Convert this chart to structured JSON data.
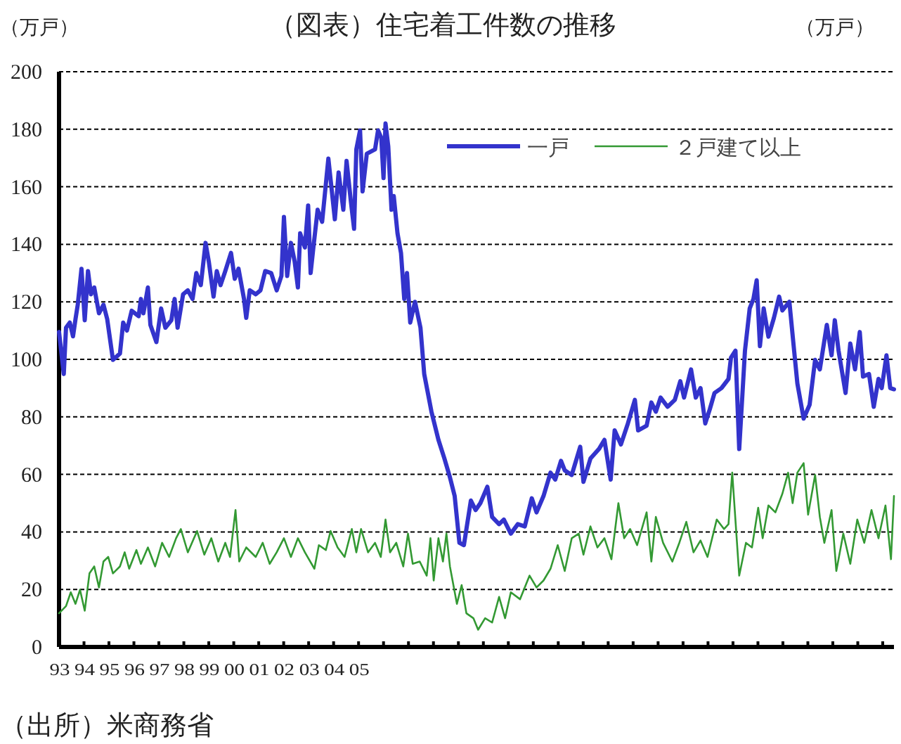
{
  "chart_data": {
    "type": "line",
    "title": "（図表）住宅着工件数の推移",
    "ylabel": "（万戸）",
    "annotations": [
      "（万戸）",
      "（出所）米商務省"
    ],
    "xlim": [
      1993,
      2026.45
    ],
    "ylim": [
      0,
      200
    ],
    "yticks": [
      0,
      20,
      40,
      60,
      80,
      100,
      120,
      140,
      160,
      180,
      200
    ],
    "xticks": [
      {
        "value": 1993,
        "label": "93"
      },
      {
        "value": 1994,
        "label": "94"
      },
      {
        "value": 1995,
        "label": "95"
      },
      {
        "value": 1996,
        "label": "96"
      },
      {
        "value": 1997,
        "label": "97"
      },
      {
        "value": 1998,
        "label": "98"
      },
      {
        "value": 1999,
        "label": "99"
      },
      {
        "value": 2000,
        "label": "00"
      },
      {
        "value": 2001,
        "label": "01"
      },
      {
        "value": 2002,
        "label": "02"
      },
      {
        "value": 2003,
        "label": "03"
      },
      {
        "value": 2004,
        "label": "04"
      },
      {
        "value": 2005,
        "label": "05"
      },
      {
        "value": 2006,
        "label": null
      },
      {
        "value": 2007,
        "label": null
      },
      {
        "value": 2008,
        "label": null
      },
      {
        "value": 2009,
        "label": null
      },
      {
        "value": 2010,
        "label": null
      },
      {
        "value": 2011,
        "label": null
      },
      {
        "value": 2012,
        "label": null
      },
      {
        "value": 2013,
        "label": null
      },
      {
        "value": 2014,
        "label": null
      },
      {
        "value": 2015,
        "label": null
      },
      {
        "value": 2016,
        "label": null
      },
      {
        "value": 2017,
        "label": null
      },
      {
        "value": 2018,
        "label": null
      },
      {
        "value": 2019,
        "label": null
      },
      {
        "value": 2020,
        "label": null
      },
      {
        "value": 2021,
        "label": null
      },
      {
        "value": 2022,
        "label": null
      },
      {
        "value": 2023,
        "label": null
      },
      {
        "value": 2024,
        "label": null
      },
      {
        "value": 2025,
        "label": null
      },
      {
        "value": 2026,
        "label": null
      }
    ],
    "grid": "y",
    "legend": "top right",
    "marker": "none",
    "series": [
      {
        "name": "一戸",
        "color": "#3333cc",
        "line_style": "solid",
        "x": [
          1993.0,
          1993.19,
          1993.28,
          1993.43,
          1993.56,
          1993.66,
          1993.75,
          1993.9,
          1994.03,
          1994.16,
          1994.28,
          1994.41,
          1994.6,
          1994.78,
          1994.93,
          1995.16,
          1995.44,
          1995.57,
          1995.72,
          1995.91,
          1996.19,
          1996.28,
          1996.38,
          1996.56,
          1996.66,
          1996.9,
          1997.09,
          1997.26,
          1997.5,
          1997.63,
          1997.75,
          1997.97,
          1998.16,
          1998.35,
          1998.5,
          1998.68,
          1998.87,
          1999.0,
          1999.19,
          1999.32,
          1999.47,
          1999.66,
          1999.89,
          2000.04,
          2000.19,
          2000.41,
          2000.5,
          2000.64,
          2000.88,
          2001.07,
          2001.26,
          2001.5,
          2001.72,
          2001.91,
          2002.01,
          2002.14,
          2002.29,
          2002.44,
          2002.57,
          2002.66,
          2002.85,
          2002.98,
          2003.08,
          2003.19,
          2003.36,
          2003.54,
          2003.79,
          2004.05,
          2004.2,
          2004.39,
          2004.52,
          2004.69,
          2004.82,
          2004.91,
          2005.06,
          2005.16,
          2005.33,
          2005.66,
          2005.78,
          2005.91,
          2006.0,
          2006.08,
          2006.19,
          2006.32,
          2006.41,
          2006.56,
          2006.7,
          2006.83,
          2006.94,
          2007.07,
          2007.26,
          2007.48,
          2007.63,
          2007.92,
          2008.2,
          2008.44,
          2008.66,
          2008.85,
          2009.04,
          2009.22,
          2009.5,
          2009.69,
          2009.88,
          2010.16,
          2010.35,
          2010.63,
          2010.82,
          2011.1,
          2011.38,
          2011.66,
          2011.94,
          2012.13,
          2012.41,
          2012.69,
          2012.88,
          2013.11,
          2013.26,
          2013.54,
          2013.88,
          2014.01,
          2014.29,
          2014.63,
          2014.85,
          2015.1,
          2015.26,
          2015.51,
          2015.79,
          2016.07,
          2016.2,
          2016.54,
          2016.73,
          2016.91,
          2017.1,
          2017.38,
          2017.67,
          2017.89,
          2018.04,
          2018.32,
          2018.51,
          2018.7,
          2018.89,
          2019.07,
          2019.26,
          2019.54,
          2019.82,
          2019.92,
          2020.1,
          2020.25,
          2020.48,
          2020.67,
          2020.82,
          2020.95,
          2021.08,
          2021.23,
          2021.42,
          2021.64,
          2021.85,
          2021.98,
          2022.26,
          2022.45,
          2022.58,
          2022.83,
          2023.07,
          2023.29,
          2023.48,
          2023.76,
          2023.95,
          2024.08,
          2024.23,
          2024.51,
          2024.7,
          2024.89,
          2025.08,
          2025.21,
          2025.45,
          2025.64,
          2025.83,
          2025.96,
          2026.15,
          2026.3,
          2026.45
        ],
        "values": [
          109.5,
          94.9,
          111,
          112.8,
          108,
          114,
          119,
          131.5,
          113.6,
          130.7,
          122.6,
          125,
          116,
          119,
          114,
          99.8,
          102,
          112.8,
          110,
          116.9,
          115,
          121,
          116,
          125,
          112,
          106,
          117.7,
          111,
          113.6,
          121,
          111,
          122.6,
          124,
          121,
          130,
          125.8,
          140.5,
          134,
          121.8,
          130.7,
          125.8,
          130.7,
          137,
          128,
          131.5,
          121,
          114.4,
          124,
          122.6,
          124,
          130.7,
          130,
          124,
          129,
          149.5,
          129,
          140.5,
          134,
          125,
          143.8,
          138.9,
          153.5,
          130,
          138.9,
          152,
          147.8,
          169.8,
          148.7,
          165,
          152,
          169,
          155,
          145.4,
          173,
          179.6,
          158.4,
          171.5,
          173,
          179.6,
          177,
          163,
          182,
          174,
          152,
          156.8,
          143.8,
          137,
          121,
          130,
          112.8,
          120,
          111,
          94.9,
          81.8,
          72,
          65.5,
          59,
          52.5,
          36.2,
          35.4,
          50.9,
          47.6,
          50,
          55.7,
          45.2,
          42.7,
          44.3,
          39.4,
          42.7,
          41.9,
          51.7,
          46.8,
          52.5,
          60.6,
          58.2,
          64.7,
          61.4,
          59.8,
          69.6,
          57.4,
          65.5,
          68.8,
          72,
          58.2,
          75.3,
          70.4,
          77.7,
          85.9,
          75.3,
          76.9,
          85,
          81.8,
          86.7,
          83.5,
          85.9,
          92.4,
          86.7,
          96.5,
          86.7,
          90,
          77.7,
          82.6,
          88.3,
          90,
          93.2,
          100.6,
          103,
          68.8,
          103,
          117.7,
          121,
          127.5,
          104.6,
          117.7,
          107.9,
          114.4,
          121.8,
          117,
          120,
          103,
          91.6,
          79.4,
          84.2,
          99.8,
          96.5,
          112,
          101.4,
          113.6,
          103,
          88.3,
          105.5,
          96.5,
          109.5,
          94,
          94.9,
          83.5,
          93.2,
          90,
          101.4,
          90,
          89.6
        ]
      },
      {
        "name": "２戸建て以上",
        "color": "#339933",
        "line_style": "solid",
        "x": [
          1993.0,
          1993.28,
          1993.47,
          1993.66,
          1993.84,
          1994.03,
          1994.22,
          1994.41,
          1994.6,
          1994.78,
          1994.97,
          1995.16,
          1995.44,
          1995.63,
          1995.81,
          1996.1,
          1996.28,
          1996.56,
          1996.85,
          1997.13,
          1997.41,
          1997.69,
          1997.88,
          1998.16,
          1998.53,
          1998.82,
          1999.1,
          1999.38,
          1999.66,
          1999.85,
          2000.07,
          2000.22,
          2000.5,
          2000.88,
          2001.16,
          2001.44,
          2001.72,
          2002.01,
          2002.29,
          2002.57,
          2002.85,
          2003.23,
          2003.41,
          2003.69,
          2003.88,
          2004.16,
          2004.44,
          2004.73,
          2004.91,
          2005.1,
          2005.38,
          2005.66,
          2005.89,
          2006.08,
          2006.26,
          2006.51,
          2006.79,
          2006.98,
          2007.17,
          2007.45,
          2007.73,
          2007.88,
          2008.01,
          2008.2,
          2008.38,
          2008.52,
          2008.66,
          2008.94,
          2009.13,
          2009.32,
          2009.6,
          2009.79,
          2010.07,
          2010.35,
          2010.63,
          2010.87,
          2011.1,
          2011.47,
          2011.85,
          2012.13,
          2012.41,
          2012.69,
          2012.98,
          2013.26,
          2013.54,
          2013.82,
          2014.01,
          2014.29,
          2014.57,
          2014.85,
          2015.13,
          2015.41,
          2015.64,
          2015.88,
          2016.16,
          2016.54,
          2016.73,
          2016.91,
          2017.2,
          2017.57,
          2017.85,
          2018.13,
          2018.42,
          2018.7,
          2018.98,
          2019.35,
          2019.64,
          2019.82,
          2019.97,
          2020.25,
          2020.52,
          2020.76,
          2021.01,
          2021.19,
          2021.42,
          2021.7,
          2021.98,
          2022.21,
          2022.39,
          2022.58,
          2022.83,
          2023.01,
          2023.29,
          2023.48,
          2023.66,
          2023.95,
          2024.14,
          2024.42,
          2024.7,
          2024.98,
          2025.26,
          2025.55,
          2025.83,
          2026.11,
          2026.33,
          2026.45
        ],
        "values": [
          11.7,
          14.2,
          19,
          15,
          19.9,
          12.6,
          25.6,
          28,
          20.7,
          29.7,
          31.3,
          25.6,
          28,
          32.9,
          27.2,
          33.7,
          28.9,
          34.6,
          28,
          36.2,
          31.3,
          37.8,
          41,
          32.9,
          40.3,
          32.1,
          37.8,
          29.7,
          36.2,
          31.3,
          47.6,
          29.7,
          34.6,
          31.3,
          36.2,
          28.9,
          32.9,
          37.8,
          31.3,
          37.8,
          32.9,
          27.2,
          35.4,
          33.7,
          40.3,
          34.6,
          31.3,
          41,
          32.9,
          41,
          32.9,
          36.2,
          31.3,
          44.3,
          32.9,
          36.2,
          28,
          39.4,
          28.9,
          29.7,
          24.8,
          37.8,
          23.1,
          37.8,
          29.7,
          39.4,
          28,
          15,
          21.5,
          11.7,
          10,
          6,
          10,
          8.5,
          17.4,
          10,
          19,
          16.6,
          24.8,
          20.7,
          23.1,
          27.2,
          35.4,
          26.4,
          37.8,
          39.4,
          32.1,
          41.9,
          34.6,
          37.8,
          30.5,
          50,
          37.8,
          41,
          35.4,
          46.8,
          29.7,
          45.2,
          36.2,
          29.7,
          36.2,
          43.5,
          32.9,
          37,
          31.3,
          44.3,
          41,
          42.7,
          60.6,
          24.8,
          36.2,
          34.6,
          48.4,
          37.8,
          49.2,
          46.8,
          53.3,
          60.6,
          50,
          60.6,
          63.9,
          46,
          59.8,
          45.2,
          36.2,
          47.6,
          26.4,
          39.4,
          28.9,
          44.3,
          36.2,
          47.6,
          37.8,
          49.2,
          30.5,
          52.5
        ]
      }
    ]
  }
}
